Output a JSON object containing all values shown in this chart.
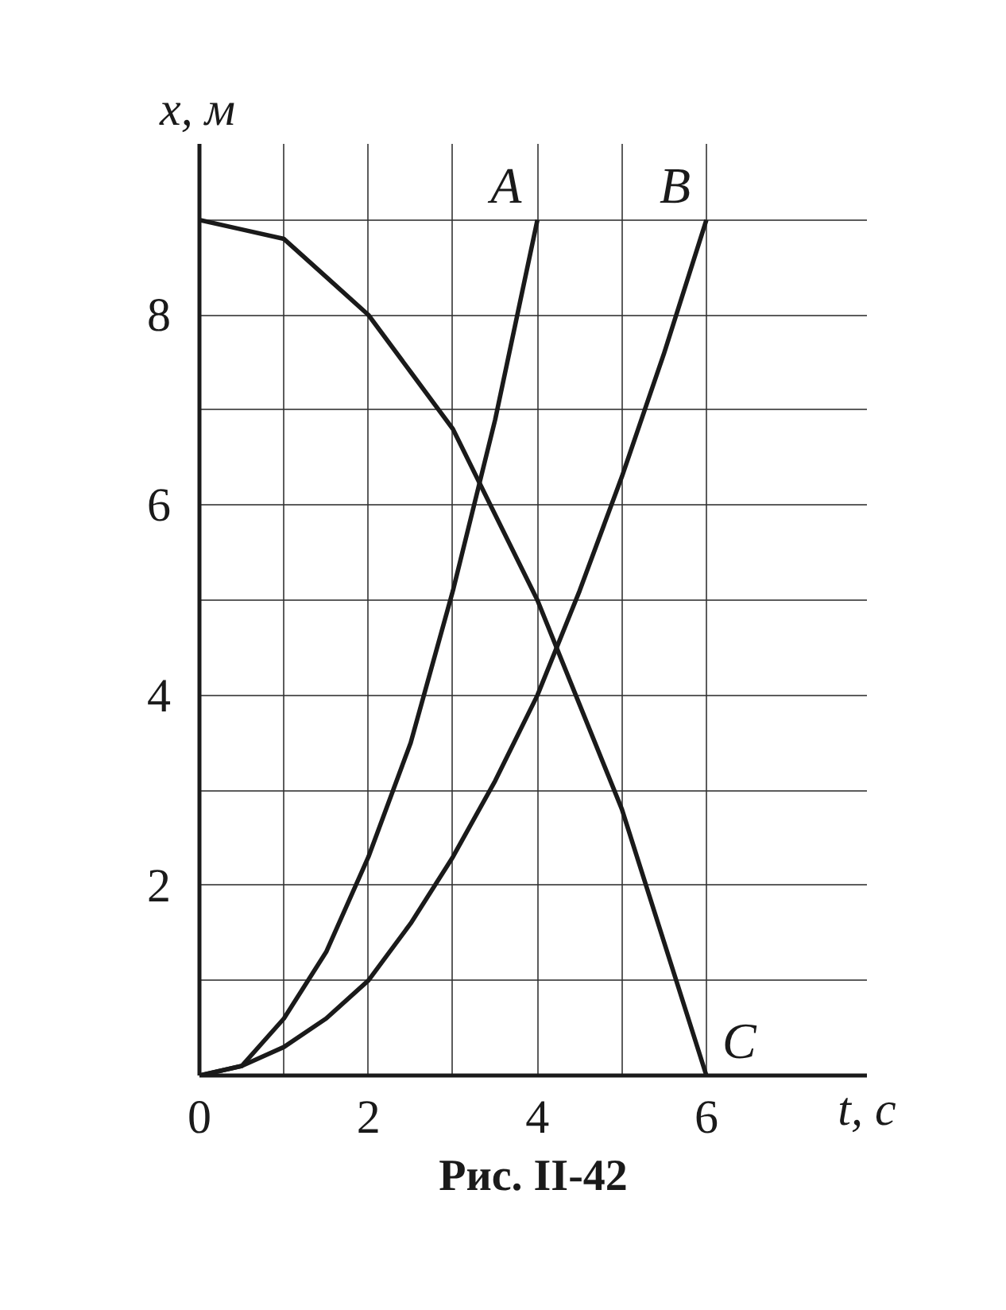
{
  "chart_data": {
    "type": "line",
    "xlabel": "t, с",
    "ylabel": "x, м",
    "annotations": [
      "Рис. II-42"
    ],
    "xlim": [
      0,
      7.9
    ],
    "ylim": [
      0,
      9.8
    ],
    "xticks": [
      {
        "value": 0,
        "label": "0"
      },
      {
        "value": 1,
        "label": null
      },
      2,
      {
        "value": 3,
        "label": null
      },
      4,
      {
        "value": 5,
        "label": null
      },
      6
    ],
    "yticks": [
      {
        "value": 0,
        "label": null
      },
      {
        "value": 1,
        "label": null
      },
      2,
      {
        "value": 3,
        "label": null
      },
      4,
      {
        "value": 5,
        "label": null
      },
      6,
      {
        "value": 7,
        "label": null
      },
      8,
      {
        "value": 9,
        "label": null
      }
    ],
    "grid": true,
    "marker": "none",
    "line_style": "solid",
    "series": [
      {
        "name": "A",
        "color": "#1a1a1a",
        "x": [
          0,
          0.5,
          1,
          1.5,
          2,
          2.5,
          3,
          3.5,
          4
        ],
        "values": [
          0,
          0.1,
          0.6,
          1.3,
          2.3,
          3.5,
          5.1,
          6.9,
          9
        ]
      },
      {
        "name": "B",
        "color": "#1a1a1a",
        "x": [
          0,
          0.5,
          1,
          1.5,
          2,
          2.5,
          3,
          3.5,
          4,
          4.5,
          5,
          5.5,
          6
        ],
        "values": [
          0,
          0.1,
          0.3,
          0.6,
          1,
          1.6,
          2.3,
          3.1,
          4,
          5.1,
          6.3,
          7.6,
          9
        ]
      },
      {
        "name": "C",
        "color": "#1a1a1a",
        "x": [
          0,
          0.5,
          1,
          1.5,
          2,
          2.5,
          3,
          3.5,
          4,
          4.5,
          5,
          5.5,
          6
        ],
        "values": [
          9,
          8.9,
          8.8,
          8.4,
          8,
          7.4,
          6.8,
          5.9,
          5,
          3.9,
          2.8,
          1.4,
          0
        ]
      }
    ]
  }
}
